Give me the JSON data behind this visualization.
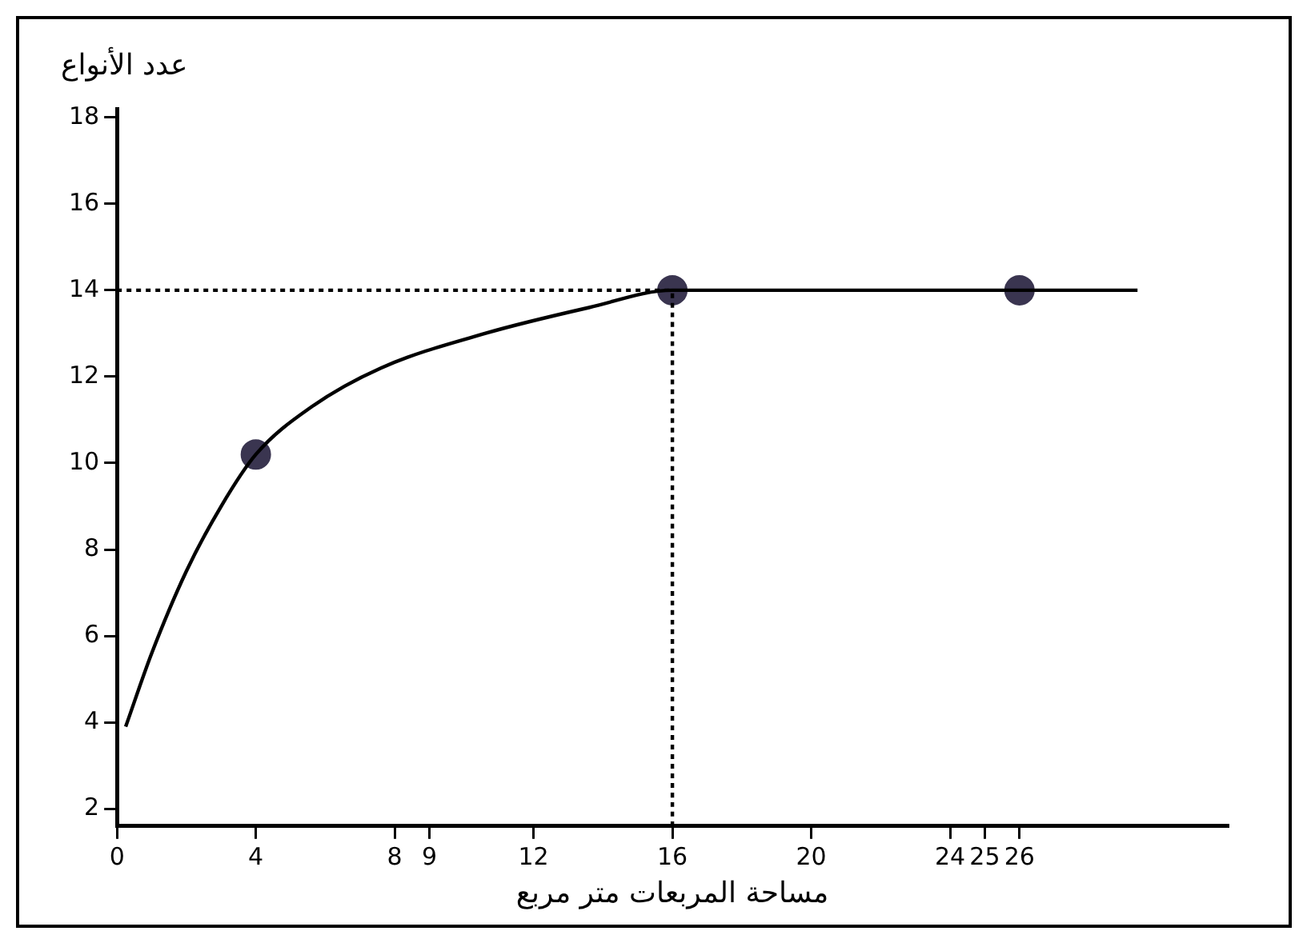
{
  "chart_data": {
    "type": "line",
    "xlabel": "مساحة المربعات متر مربع",
    "ylabel": "عدد الأنواع",
    "xlim": [
      0,
      32
    ],
    "xticks": [
      0,
      4,
      8,
      9,
      12,
      16,
      20,
      24,
      25,
      26
    ],
    "ylim": [
      1.6,
      18.2
    ],
    "yticks": [
      2,
      4,
      6,
      8,
      10,
      12,
      14,
      16,
      18
    ],
    "grid": false,
    "legend": false,
    "marker": "none",
    "series": [
      {
        "color": "#000000",
        "line_style": "solid",
        "x": [
          0.25,
          1,
          2,
          3,
          4,
          5.6,
          7.6,
          10.6,
          13.6,
          16,
          20,
          26,
          29.4
        ],
        "values": [
          3.9,
          5.6,
          7.5,
          9,
          10.2,
          11.3,
          12.2,
          13,
          13.6,
          14,
          14,
          14,
          14
        ]
      },
      {
        "color": "#000000",
        "line_style": "dotted",
        "x": [
          0,
          16
        ],
        "values": [
          14,
          14
        ]
      },
      {
        "color": "#000000",
        "line_style": "dotted",
        "x": [
          16,
          16
        ],
        "values": [
          1.6,
          14
        ]
      },
      {
        "type": "scatter",
        "color": "#3a3550",
        "marker": "circle",
        "x": [
          4,
          16,
          26
        ],
        "values": [
          10.2,
          14,
          14
        ]
      }
    ]
  }
}
